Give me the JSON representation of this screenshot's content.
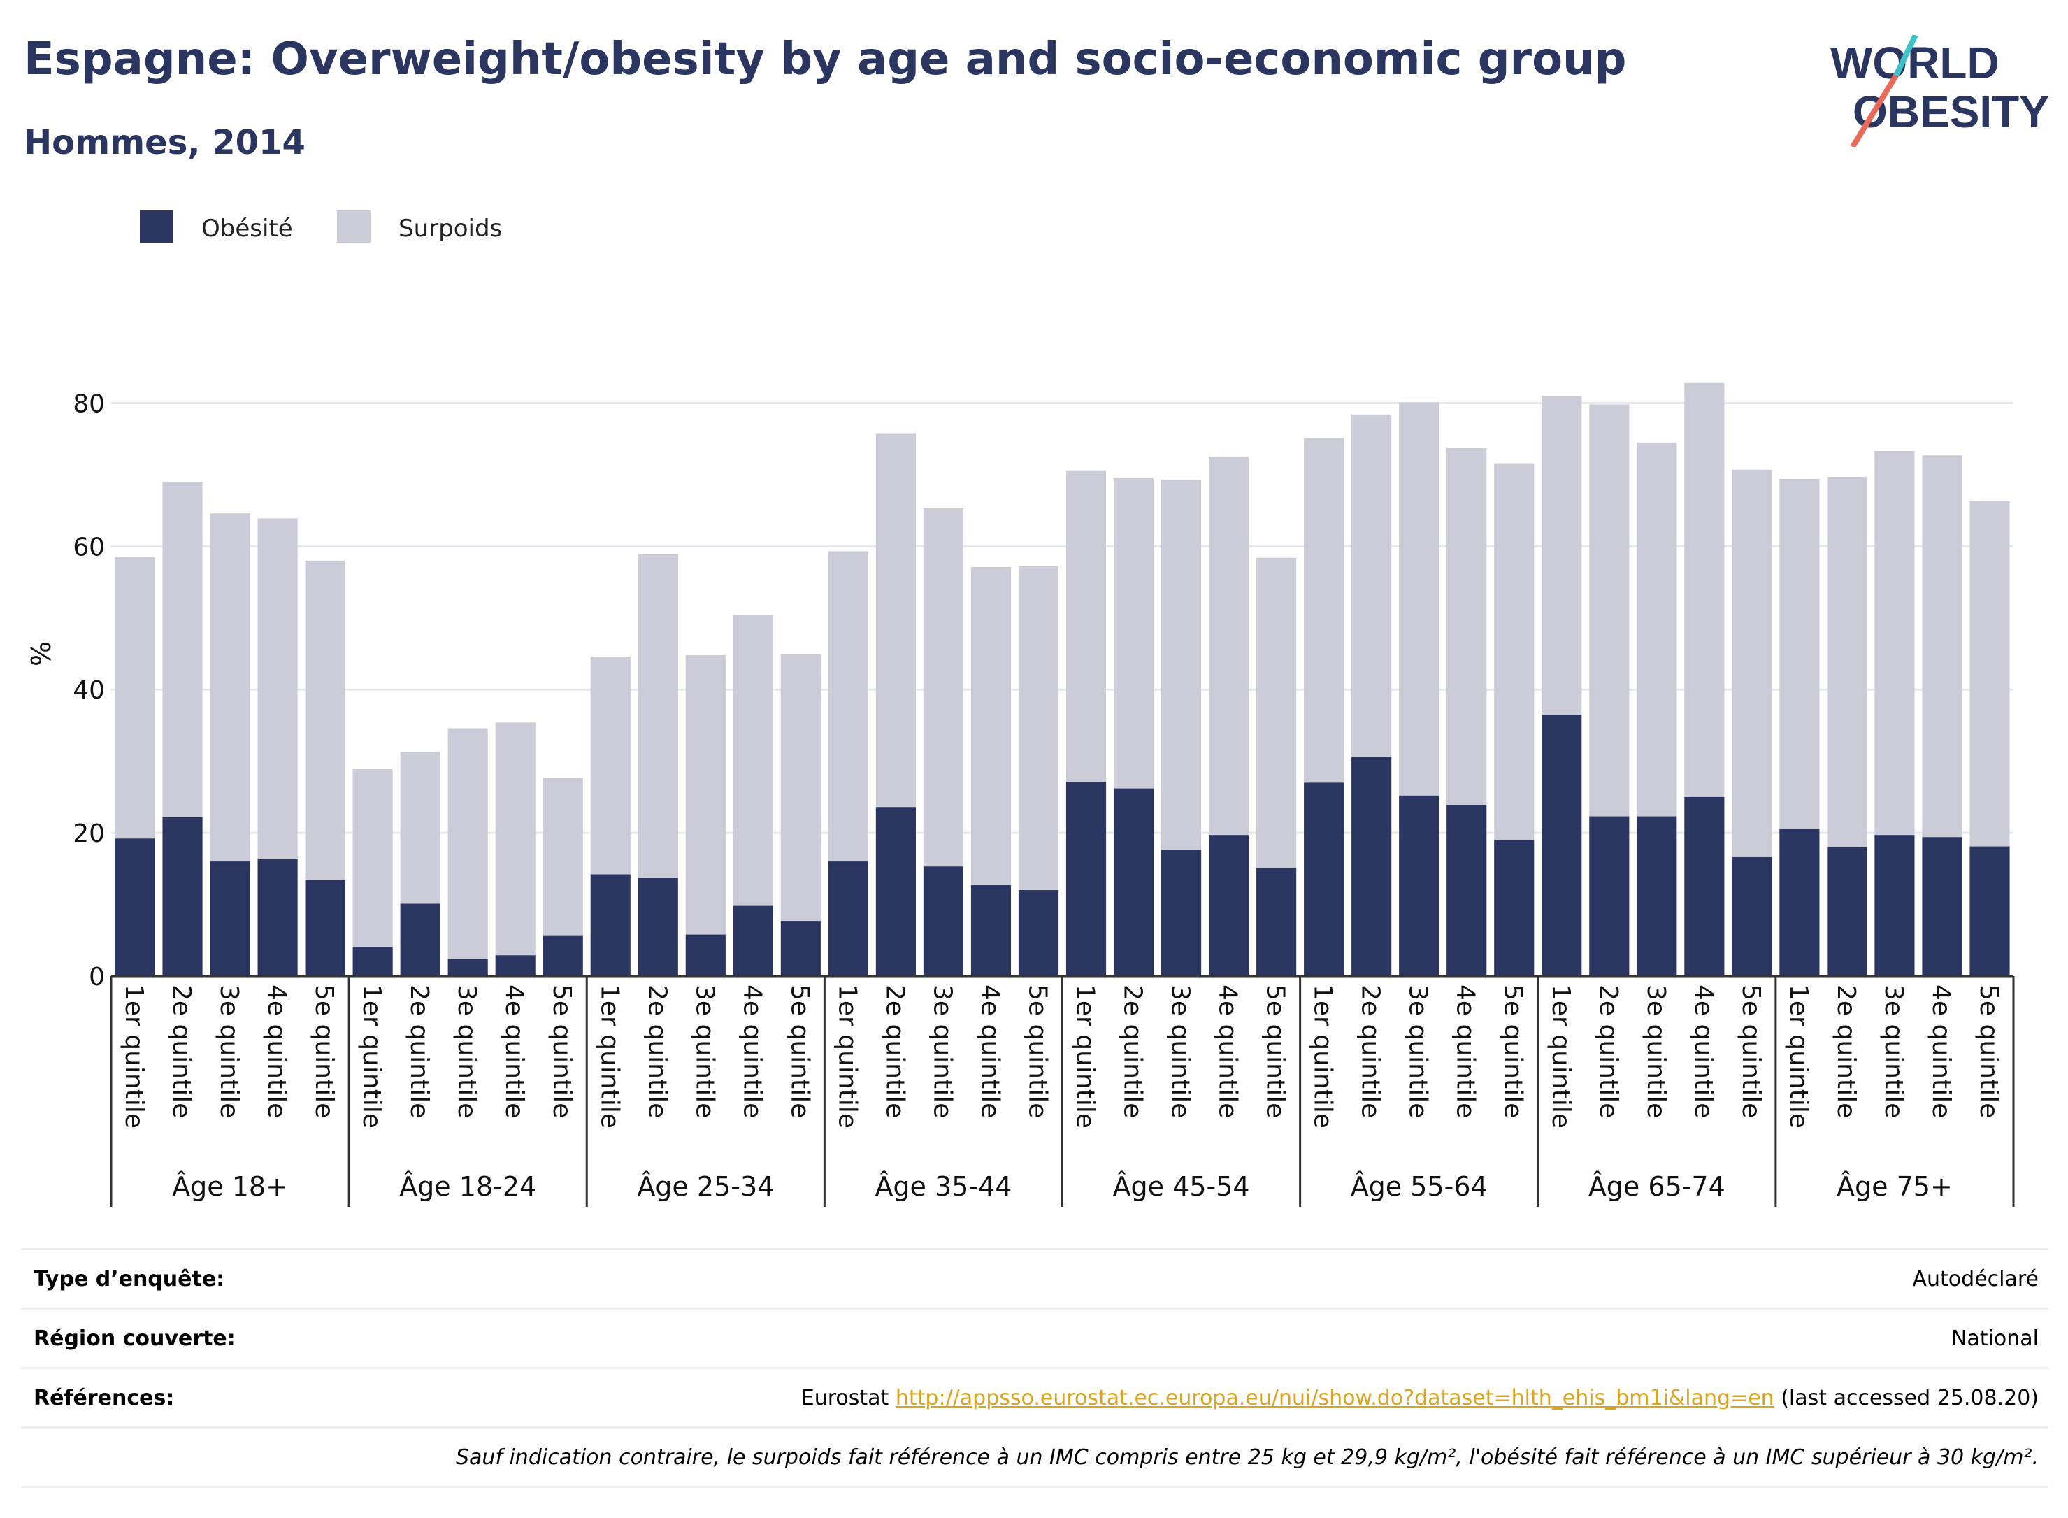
{
  "title": "Espagne: Overweight/obesity by age and socio-economic group",
  "subtitle": "Hommes, 2014",
  "logo": {
    "line1": "WORLD",
    "line2": "OBESITY"
  },
  "colors": {
    "obesity": "#2a3561",
    "overweight": "#cbccd8",
    "title": "#2a3560",
    "link": "#d9a420",
    "grid": "#e6e8ee"
  },
  "chart_data": {
    "type": "bar",
    "stacked": true,
    "ylabel": "%",
    "ylim": [
      0,
      90
    ],
    "yticks": [
      0,
      20,
      40,
      60,
      80
    ],
    "grid": true,
    "legend_position": "top-left",
    "series": [
      {
        "name": "Obésité",
        "color": "#2a3561"
      },
      {
        "name": "Surpoids",
        "color": "#cbccd8"
      }
    ],
    "groups": [
      {
        "label": "Âge 18+",
        "categories": [
          "1er quintile",
          "2e quintile",
          "3e quintile",
          "4e quintile",
          "5e quintile"
        ],
        "obesity": [
          19.2,
          22.2,
          16.0,
          16.3,
          13.4
        ],
        "total": [
          58.5,
          69.0,
          64.6,
          63.9,
          58.0
        ]
      },
      {
        "label": "Âge 18-24",
        "categories": [
          "1er quintile",
          "2e quintile",
          "3e quintile",
          "4e quintile",
          "5e quintile"
        ],
        "obesity": [
          4.1,
          10.1,
          2.4,
          2.9,
          5.7
        ],
        "total": [
          28.9,
          31.3,
          34.6,
          35.4,
          27.7
        ]
      },
      {
        "label": "Âge 25-34",
        "categories": [
          "1er quintile",
          "2e quintile",
          "3e quintile",
          "4e quintile",
          "5e quintile"
        ],
        "obesity": [
          14.2,
          13.7,
          5.8,
          9.8,
          7.7
        ],
        "total": [
          44.6,
          58.9,
          44.8,
          50.4,
          44.9
        ]
      },
      {
        "label": "Âge 35-44",
        "categories": [
          "1er quintile",
          "2e quintile",
          "3e quintile",
          "4e quintile",
          "5e quintile"
        ],
        "obesity": [
          16.0,
          23.6,
          15.3,
          12.7,
          12.0
        ],
        "total": [
          59.3,
          75.8,
          65.3,
          57.1,
          57.2
        ]
      },
      {
        "label": "Âge 45-54",
        "categories": [
          "1er quintile",
          "2e quintile",
          "3e quintile",
          "4e quintile",
          "5e quintile"
        ],
        "obesity": [
          27.1,
          26.2,
          17.6,
          19.7,
          15.1
        ],
        "total": [
          70.6,
          69.5,
          69.3,
          72.5,
          58.4
        ]
      },
      {
        "label": "Âge 55-64",
        "categories": [
          "1er quintile",
          "2e quintile",
          "3e quintile",
          "4e quintile",
          "5e quintile"
        ],
        "obesity": [
          27.0,
          30.6,
          25.2,
          23.9,
          19.0
        ],
        "total": [
          75.1,
          78.4,
          80.1,
          73.7,
          71.6
        ]
      },
      {
        "label": "Âge 65-74",
        "categories": [
          "1er quintile",
          "2e quintile",
          "3e quintile",
          "4e quintile",
          "5e quintile"
        ],
        "obesity": [
          36.5,
          22.3,
          22.3,
          25.0,
          16.7
        ],
        "total": [
          81.0,
          79.8,
          74.5,
          82.8,
          70.7
        ]
      },
      {
        "label": "Âge 75+",
        "categories": [
          "1er quintile",
          "2e quintile",
          "3e quintile",
          "4e quintile",
          "5e quintile"
        ],
        "obesity": [
          20.6,
          18.0,
          19.7,
          19.4,
          18.1
        ],
        "total": [
          69.4,
          69.7,
          73.3,
          72.7,
          66.3
        ]
      }
    ]
  },
  "info": {
    "survey_label": "Type d’enquête:",
    "survey_value": "Autodéclaré",
    "region_label": "Région couverte:",
    "region_value": "National",
    "refs_label": "Références:",
    "refs_prefix": "Eurostat",
    "refs_link": "http://appsso.eurostat.ec.europa.eu/nui/show.do?dataset=hlth_ehis_bm1i&lang=en",
    "refs_suffix": "(last accessed 25.08.20)",
    "note": "Sauf indication contraire, le surpoids fait référence à un IMC compris entre 25 kg et 29,9 kg/m², l'obésité fait référence à un IMC supérieur à 30 kg/m²."
  }
}
